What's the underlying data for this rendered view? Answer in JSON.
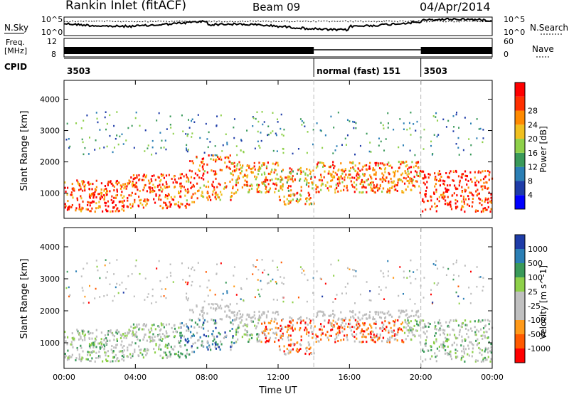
{
  "header": {
    "station": "Rankin Inlet (fitACF)",
    "beam": "Beam 09",
    "date": "04/Apr/2014"
  },
  "status_panels": {
    "nsky_label": "N.Sky",
    "nsearch_label": "N.Search",
    "noise_ticks": [
      "10^5",
      "10^0"
    ],
    "freq_label_1": "Freq.",
    "freq_label_2": "[MHz]",
    "freq_ticks": [
      "12",
      "8"
    ],
    "nave_label": "Nave",
    "nave_ticks": [
      "60",
      "0"
    ],
    "cpid_label": "CPID",
    "cpid_segments": [
      {
        "label": "3503",
        "start_h": 0,
        "end_h": 14
      },
      {
        "label": "normal (fast) 151",
        "start_h": 14,
        "end_h": 20
      },
      {
        "label": "3503",
        "start_h": 20,
        "end_h": 24
      }
    ]
  },
  "colors": {
    "power_scale": [
      "#0000ff",
      "#1e3ca8",
      "#2b7fb5",
      "#3a9a5a",
      "#8ed04a",
      "#f0c020",
      "#ff8a00",
      "#ff3000",
      "#ff0000"
    ],
    "velocity_scale": [
      "#ff0000",
      "#ff5a00",
      "#ff9a1a",
      "#c0c0c0",
      "#c0c0c0",
      "#8ed04a",
      "#3a9a5a",
      "#2b7fb5",
      "#1e3ca8"
    ],
    "ground_scatter": "#bdbdbd"
  },
  "chart_data": [
    {
      "type": "heatmap",
      "title": "",
      "xlabel": "",
      "ylabel": "Slant Range [km]",
      "xlim": [
        0,
        24
      ],
      "ylim": [
        200,
        4600
      ],
      "x_ticks": [
        "00:00",
        "04:00",
        "08:00",
        "12:00",
        "16:00",
        "20:00",
        "00:00"
      ],
      "y_ticks": [
        1000,
        2000,
        3000,
        4000
      ],
      "colorbar": {
        "label": "Power [dB]",
        "ticks": [
          "4",
          "8",
          "12",
          "16",
          "20",
          "24",
          "28"
        ]
      },
      "note_bands": [
        {
          "start_h": 0,
          "end_h": 3.5,
          "range_lo": 400,
          "range_hi": 1400,
          "level": 0.85
        },
        {
          "start_h": 3.5,
          "end_h": 7,
          "range_lo": 500,
          "range_hi": 1600,
          "level": 0.8
        },
        {
          "start_h": 7,
          "end_h": 9.5,
          "range_lo": 700,
          "range_hi": 2200,
          "level": 0.75
        },
        {
          "start_h": 9.5,
          "end_h": 12,
          "range_lo": 1000,
          "range_hi": 2000,
          "level": 0.7
        },
        {
          "start_h": 12,
          "end_h": 14,
          "range_lo": 600,
          "range_hi": 1800,
          "level": 0.65
        },
        {
          "start_h": 14,
          "end_h": 20,
          "range_lo": 1000,
          "range_hi": 2000,
          "level": 0.75
        },
        {
          "start_h": 20,
          "end_h": 24,
          "range_lo": 400,
          "range_hi": 1700,
          "level": 0.88
        }
      ]
    },
    {
      "type": "heatmap",
      "title": "",
      "xlabel": "Time UT",
      "ylabel": "Slant Range [km]",
      "xlim": [
        0,
        24
      ],
      "ylim": [
        200,
        4600
      ],
      "x_ticks": [
        "00:00",
        "04:00",
        "08:00",
        "12:00",
        "16:00",
        "20:00",
        "00:00"
      ],
      "y_ticks": [
        1000,
        2000,
        3000,
        4000
      ],
      "colorbar": {
        "label": "Velocity [m s^-1]",
        "ticks": [
          "1000",
          "500",
          "100",
          "25",
          "-25",
          "-100",
          "-500",
          "-1000"
        ]
      }
    }
  ]
}
